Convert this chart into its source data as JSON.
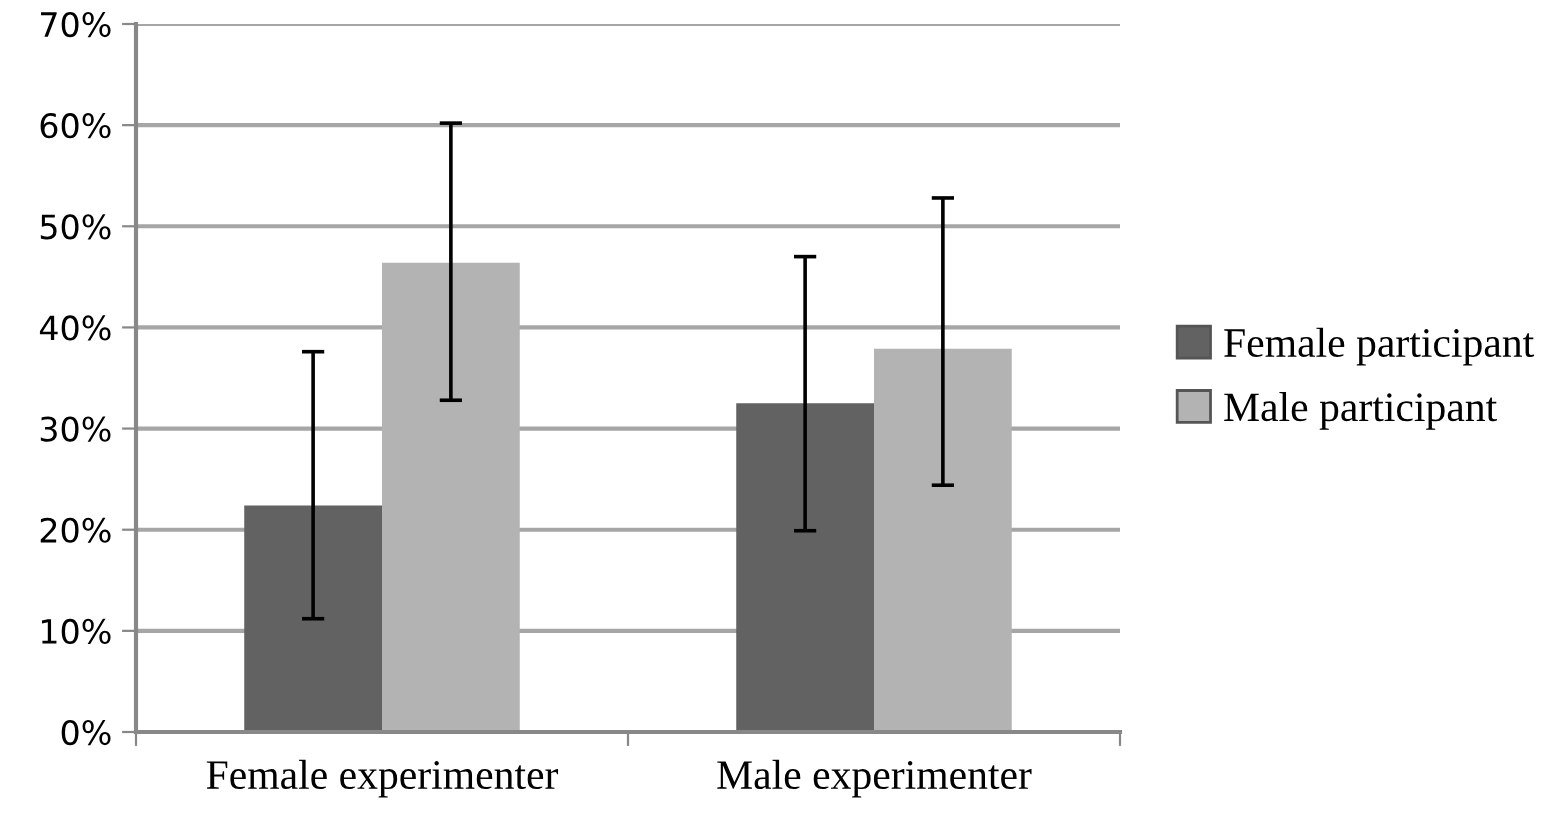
{
  "chart_data": {
    "type": "bar",
    "categories": [
      "Female experimenter",
      "Male experimenter"
    ],
    "series": [
      {
        "name": "Female participant",
        "color": "#626262",
        "values": [
          22.4,
          32.5
        ],
        "errors": [
          [
            11.2,
            37.6
          ],
          [
            19.9,
            47.0
          ]
        ]
      },
      {
        "name": "Male participant",
        "color": "#b3b3b3",
        "values": [
          46.4,
          37.9
        ],
        "errors": [
          [
            32.8,
            60.2
          ],
          [
            24.4,
            52.8
          ]
        ]
      }
    ],
    "ylim": [
      0,
      70
    ],
    "yticks": [
      {
        "value": 0,
        "label": "0%"
      },
      {
        "value": 10,
        "label": "10%"
      },
      {
        "value": 20,
        "label": "20%"
      },
      {
        "value": 30,
        "label": "30%"
      },
      {
        "value": 40,
        "label": "40%"
      },
      {
        "value": 50,
        "label": "50%"
      },
      {
        "value": 60,
        "label": "60%"
      },
      {
        "value": 70,
        "label": "70%"
      }
    ],
    "grid": "y",
    "legend": "right"
  }
}
